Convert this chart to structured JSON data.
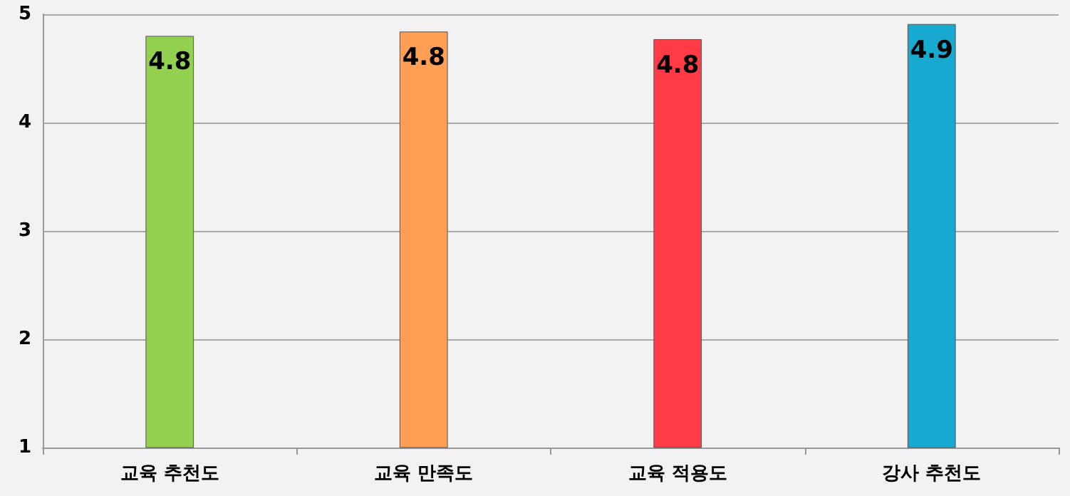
{
  "chart_data": {
    "type": "bar",
    "categories": [
      "교육 추천도",
      "교육 만족도",
      "교육 적용도",
      "강사 추천도"
    ],
    "values": [
      4.8,
      4.84,
      4.77,
      4.91
    ],
    "value_labels": [
      "4.8",
      "4.8",
      "4.8",
      "4.9"
    ],
    "colors": [
      "#92d050",
      "#ff9f55",
      "#ff3b45",
      "#17a9d0"
    ],
    "ylim": [
      1,
      5
    ],
    "yticks": [
      1,
      2,
      3,
      4,
      5
    ],
    "grid": "y"
  }
}
